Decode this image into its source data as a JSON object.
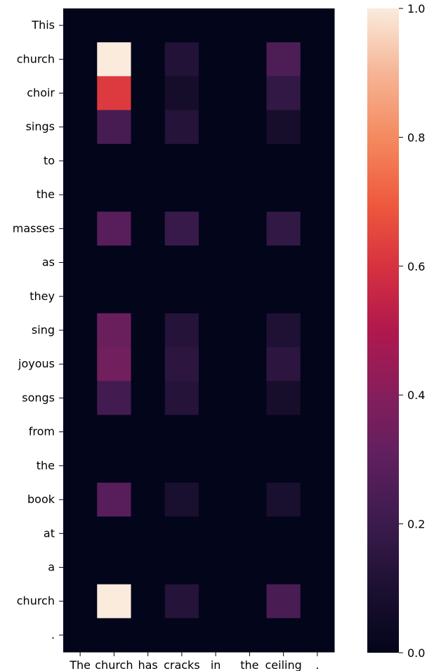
{
  "chart_data": {
    "type": "heatmap",
    "title": "",
    "xlabel": "",
    "ylabel": "",
    "x_labels": [
      "The",
      "church",
      "has",
      "cracks",
      "in",
      "the",
      "ceiling",
      "."
    ],
    "y_labels": [
      "This",
      "church",
      "choir",
      "sings",
      "to",
      "the",
      "masses",
      "as",
      "they",
      "sing",
      "joyous",
      "songs",
      "from",
      "the",
      "book",
      "at",
      "a",
      "church",
      "."
    ],
    "values": [
      [
        0,
        0,
        0,
        0,
        0,
        0,
        0,
        0
      ],
      [
        0,
        1.0,
        0,
        0.12,
        0,
        0,
        0.25,
        0
      ],
      [
        0,
        0.62,
        0,
        0.07,
        0,
        0,
        0.17,
        0
      ],
      [
        0,
        0.23,
        0,
        0.13,
        0,
        0,
        0.08,
        0
      ],
      [
        0,
        0,
        0,
        0,
        0,
        0,
        0,
        0
      ],
      [
        0,
        0,
        0,
        0,
        0,
        0,
        0,
        0
      ],
      [
        0,
        0.28,
        0,
        0.19,
        0,
        0,
        0.17,
        0
      ],
      [
        0,
        0,
        0,
        0,
        0,
        0,
        0,
        0
      ],
      [
        0,
        0,
        0,
        0,
        0,
        0,
        0,
        0
      ],
      [
        0,
        0.33,
        0,
        0.13,
        0,
        0,
        0.11,
        0
      ],
      [
        0,
        0.35,
        0,
        0.15,
        0,
        0,
        0.15,
        0
      ],
      [
        0,
        0.22,
        0,
        0.13,
        0,
        0,
        0.08,
        0
      ],
      [
        0,
        0,
        0,
        0,
        0,
        0,
        0,
        0
      ],
      [
        0,
        0,
        0,
        0,
        0,
        0,
        0,
        0
      ],
      [
        0,
        0.28,
        0,
        0.09,
        0,
        0,
        0.09,
        0
      ],
      [
        0,
        0,
        0,
        0,
        0,
        0,
        0,
        0
      ],
      [
        0,
        0,
        0,
        0,
        0,
        0,
        0,
        0
      ],
      [
        0,
        1.0,
        0,
        0.13,
        0,
        0,
        0.24,
        0
      ],
      [
        0,
        0,
        0,
        0,
        0,
        0,
        0,
        0
      ]
    ],
    "colorbar": {
      "range": [
        0.0,
        1.0
      ],
      "ticks": [
        0.0,
        0.2,
        0.4,
        0.6,
        0.8,
        1.0
      ],
      "tick_labels": [
        "0.0",
        "0.2",
        "0.4",
        "0.6",
        "0.8",
        "1.0"
      ],
      "colormap": "rocket"
    },
    "grid": false,
    "legend": "colorbar-right"
  }
}
